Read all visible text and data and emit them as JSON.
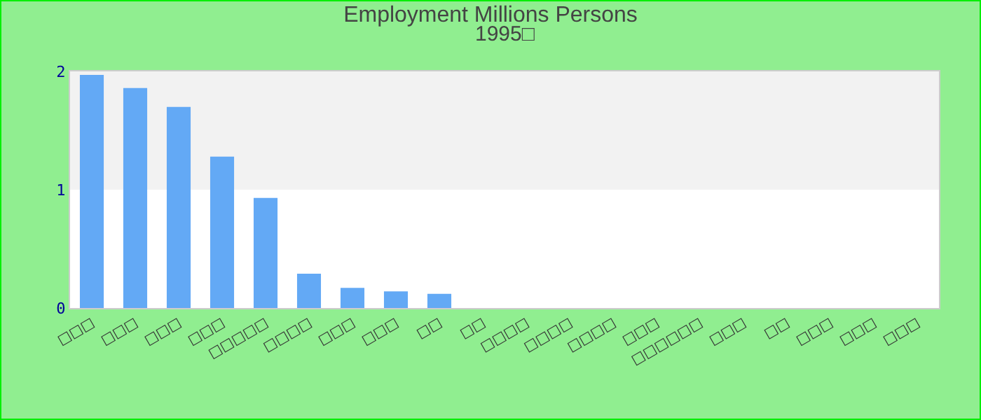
{
  "chart_data": {
    "type": "bar",
    "title": "Employment Millions Persons",
    "subtitle": "1995□",
    "categories": [
      "□□□",
      "□□□",
      "□□□",
      "□□□",
      "□□□□□",
      "□□□□",
      "□□□",
      "□□□",
      "□□",
      "□□",
      "□□□□",
      "□□□□",
      "□□□□",
      "□□□",
      "□□□□□□",
      "□□□",
      "□□",
      "□□□",
      "□□□",
      "□□□"
    ],
    "values": [
      1.97,
      1.86,
      1.7,
      1.28,
      0.93,
      0.29,
      0.17,
      0.14,
      0.12,
      0,
      0,
      0,
      0,
      0,
      0,
      0,
      0,
      0,
      0,
      0
    ],
    "color": "#63a9f5",
    "ylim": [
      0,
      2
    ],
    "yticks": [
      0,
      1,
      2
    ],
    "bands": [
      {
        "axis": "y",
        "from": 1,
        "to": 2,
        "color": "#f2f2f2"
      }
    ],
    "grid": false,
    "legend": false
  }
}
